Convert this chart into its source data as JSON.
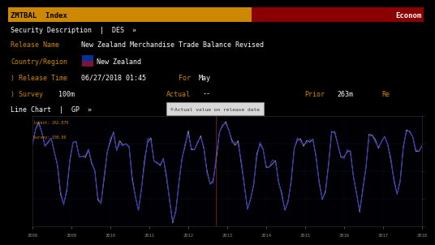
{
  "title_left": "ZMTBAL  Index",
  "title_right": "Econom",
  "desc_label": "Security Description  |  DES  »",
  "release_name_label": "Release Name",
  "release_name_value": "New Zealand Merchandise Trade Balance Revised",
  "country_label": "Country/Region",
  "country_value": "New Zealand",
  "release_time_label": ") Release Time",
  "release_time_value": "06/27/2018 01:45",
  "for_label": "For",
  "for_value": "May",
  "survey_label": ") Survey",
  "survey_value": "100m",
  "actual_label": "Actual",
  "actual_value": "--",
  "prior_label": "Prior",
  "prior_value": "263m",
  "re_label": "Re",
  "line_chart_label": "Line Chart  |  GP  »",
  "left_label1": "latest: 262.879",
  "left_label2": "Survey: 100.00",
  "tooltip_text": "Actual value on release date",
  "x_tick_labels": [
    "2008",
    "2009",
    "2010",
    "2011",
    "2012",
    "2013",
    "2014",
    "2015",
    "2016",
    "2017",
    "2018"
  ],
  "title_bg_orange": "#cc8800",
  "title_bg_red": "#8b0000",
  "bg_black": "#000000",
  "bg_dark": "#0a0a0a",
  "bg_row": "#111111",
  "orange": "#cc8800",
  "white": "#ffffff",
  "blue_line": "#3333bb",
  "white_line": "#cccccc",
  "grid_color": "#1a1a3a",
  "tick_color": "#888888",
  "chart_bg": "#000005",
  "tooltip_bg": "#d8d8d8",
  "tooltip_border": "#999999"
}
